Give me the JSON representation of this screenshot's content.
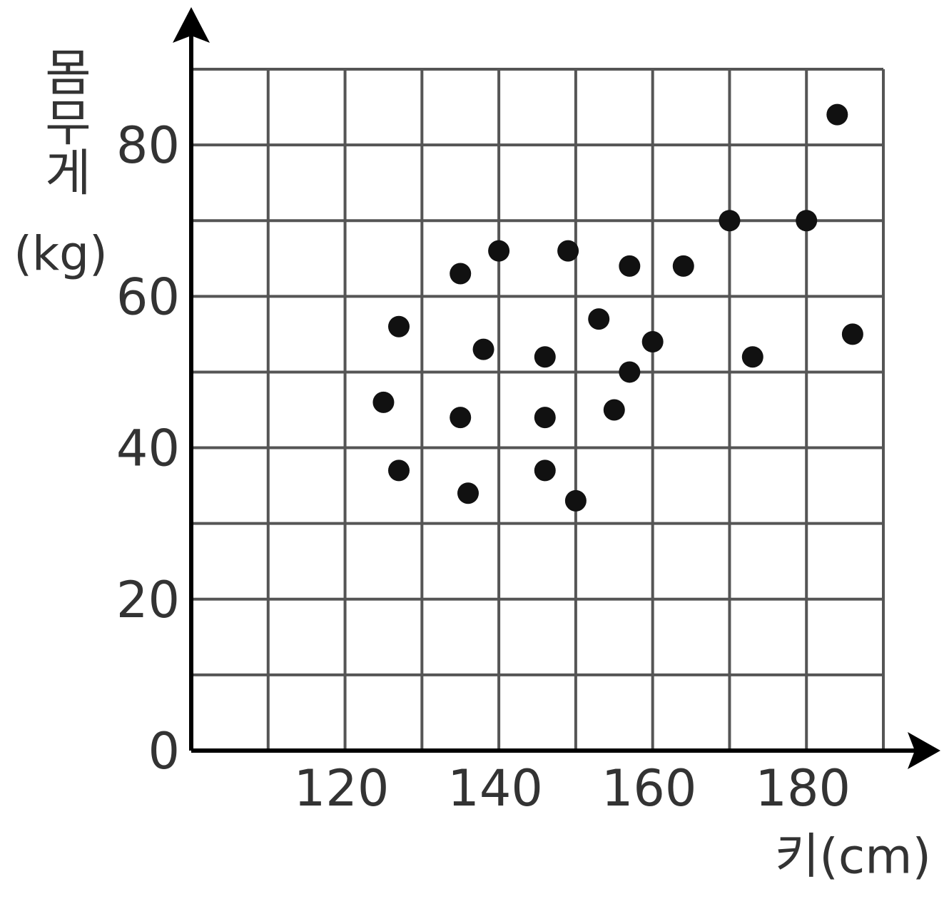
{
  "chart_data": {
    "type": "scatter",
    "y_label": "몸무게",
    "y_unit": "(kg)",
    "x_label": "키(cm)",
    "xlim": [
      100,
      190
    ],
    "ylim": [
      0,
      90
    ],
    "xticks": [
      120,
      140,
      160,
      180
    ],
    "yticks": [
      0,
      20,
      40,
      60,
      80
    ],
    "xgrid": [
      110,
      120,
      130,
      140,
      150,
      160,
      170,
      180,
      190
    ],
    "ygrid": [
      10,
      20,
      30,
      40,
      50,
      60,
      70,
      80,
      90
    ],
    "color": "#111111",
    "x": [
      184,
      170,
      180,
      140,
      149,
      135,
      157,
      164,
      127,
      186,
      153,
      138,
      146,
      160,
      173,
      157,
      125,
      135,
      146,
      155,
      127,
      146,
      136,
      150
    ],
    "values": [
      84,
      70,
      70,
      66,
      66,
      63,
      64,
      64,
      56,
      55,
      57,
      53,
      52,
      54,
      52,
      50,
      46,
      44,
      44,
      45,
      37,
      37,
      34,
      33
    ]
  }
}
